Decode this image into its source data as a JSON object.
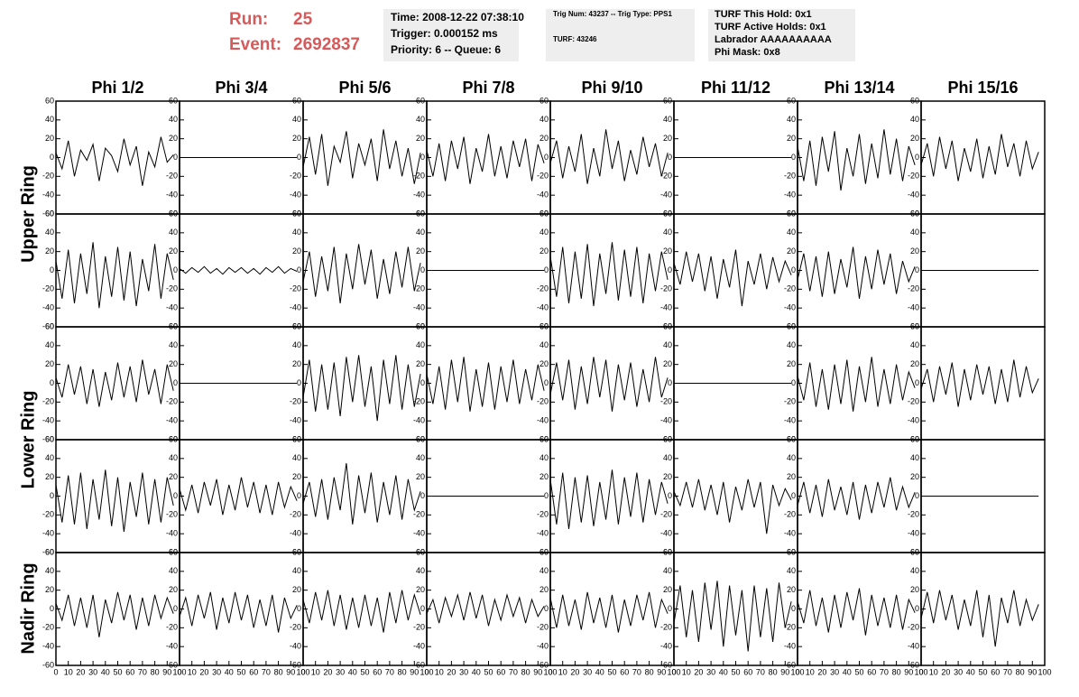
{
  "header": {
    "run_label": "Run:",
    "run": 25,
    "event_label": "Event:",
    "event": 2692837,
    "info1": [
      "Time: 2008-12-22 07:38:10",
      "Trigger: 0.000152 ms",
      "Priority: 6 -- Queue: 6"
    ],
    "info2": [
      "Trig Num: 43237 -- Trig Type: PPS1",
      "TURF: 43246"
    ],
    "info3": [
      "TURF This Hold: 0x1",
      "TURF Active Holds: 0x1",
      "Labrador AAAAAAAAAA",
      "Phi Mask: 0x8"
    ]
  },
  "chart_data": {
    "type": "waveform-grid",
    "columns": [
      "Phi 1/2",
      "Phi 3/4",
      "Phi 5/6",
      "Phi 7/8",
      "Phi 9/10",
      "Phi 11/12",
      "Phi 13/14",
      "Phi 15/16"
    ],
    "ring_labels": [
      "Upper Ring",
      "Lower Ring",
      "Nadir Ring"
    ],
    "xlim": [
      0,
      100
    ],
    "xticks": [
      0,
      10,
      20,
      30,
      40,
      50,
      60,
      70,
      80,
      90,
      100
    ],
    "ylim": [
      -60,
      60
    ],
    "yticks": [
      -60,
      -40,
      -20,
      0,
      20,
      40,
      60
    ],
    "color": "#000000",
    "x": [
      0,
      5,
      10,
      15,
      20,
      25,
      30,
      35,
      40,
      45,
      50,
      55,
      60,
      65,
      70,
      75,
      80,
      85,
      90,
      95
    ],
    "panels": [
      [
        [
          5,
          -12,
          18,
          -20,
          8,
          -3,
          14,
          -25,
          10,
          2,
          -15,
          20,
          -8,
          12,
          -30,
          6,
          -10,
          22,
          -5,
          3
        ],
        [
          0,
          0,
          0,
          0,
          0,
          0,
          0,
          0,
          0,
          0,
          0,
          0,
          0,
          0,
          0,
          0,
          0,
          0,
          0,
          0
        ],
        [
          -10,
          22,
          -18,
          25,
          -30,
          12,
          -5,
          28,
          -22,
          15,
          -8,
          20,
          -25,
          30,
          -12,
          18,
          -20,
          10,
          -28,
          5
        ],
        [
          8,
          -20,
          15,
          -25,
          18,
          -12,
          22,
          -28,
          10,
          -15,
          25,
          -20,
          12,
          -22,
          18,
          -10,
          20,
          -25,
          14,
          -6
        ],
        [
          -6,
          18,
          -22,
          12,
          -15,
          25,
          -28,
          10,
          -20,
          30,
          -12,
          18,
          -25,
          8,
          -18,
          22,
          -10,
          15,
          -20,
          5
        ],
        [
          0,
          0,
          0,
          0,
          0,
          0,
          0,
          0,
          0,
          0,
          0,
          0,
          0,
          0,
          0,
          0,
          0,
          0,
          0,
          0
        ],
        [
          12,
          -25,
          18,
          -30,
          22,
          -15,
          28,
          -35,
          10,
          -20,
          25,
          -28,
          15,
          -22,
          30,
          -18,
          20,
          -25,
          12,
          -8
        ],
        [
          -8,
          15,
          -20,
          22,
          -12,
          18,
          -25,
          10,
          -15,
          20,
          -22,
          12,
          -18,
          25,
          -10,
          15,
          -20,
          18,
          -12,
          6
        ]
      ],
      [
        [
          10,
          -30,
          22,
          -35,
          18,
          -25,
          30,
          -40,
          15,
          -28,
          25,
          -32,
          20,
          -38,
          12,
          -22,
          28,
          -30,
          18,
          -10
        ],
        [
          2,
          -3,
          3,
          -2,
          4,
          -3,
          2,
          -4,
          3,
          -2,
          3,
          -3,
          2,
          -4,
          3,
          -2,
          4,
          -3,
          2,
          -1
        ],
        [
          -12,
          20,
          -28,
          15,
          -22,
          25,
          -35,
          18,
          -20,
          28,
          -15,
          22,
          -30,
          12,
          -25,
          20,
          -18,
          25,
          -22,
          8
        ],
        [
          0,
          0,
          0,
          0,
          0,
          0,
          0,
          0,
          0,
          0,
          0,
          0,
          0,
          0,
          0,
          0,
          0,
          0,
          0,
          0
        ],
        [
          15,
          -28,
          25,
          -35,
          20,
          -30,
          28,
          -38,
          18,
          -25,
          30,
          -32,
          22,
          -28,
          25,
          -35,
          18,
          -22,
          20,
          -10
        ],
        [
          8,
          -15,
          20,
          -12,
          18,
          -22,
          15,
          -30,
          12,
          -18,
          22,
          -38,
          10,
          -15,
          18,
          -20,
          14,
          -12,
          10,
          -5
        ],
        [
          -10,
          18,
          -22,
          15,
          -28,
          20,
          -25,
          12,
          -18,
          25,
          -30,
          15,
          -20,
          22,
          -15,
          18,
          -25,
          10,
          -12,
          4
        ],
        [
          0,
          0,
          0,
          0,
          0,
          0,
          0,
          0,
          0,
          0,
          0,
          0,
          0,
          0,
          0,
          0,
          0,
          0,
          0,
          0
        ]
      ],
      [
        [
          6,
          -15,
          20,
          -12,
          18,
          -22,
          15,
          -25,
          12,
          -18,
          22,
          -15,
          18,
          -20,
          25,
          -12,
          15,
          -22,
          20,
          -8
        ],
        [
          0,
          0,
          0,
          0,
          0,
          0,
          0,
          0,
          0,
          0,
          0,
          0,
          0,
          0,
          0,
          0,
          0,
          0,
          0,
          0
        ],
        [
          -15,
          25,
          -30,
          20,
          -28,
          22,
          -35,
          28,
          -20,
          30,
          -25,
          18,
          -40,
          25,
          -22,
          30,
          -28,
          20,
          -25,
          10
        ],
        [
          10,
          -22,
          18,
          -28,
          25,
          -20,
          28,
          -30,
          15,
          -25,
          22,
          -28,
          18,
          -20,
          25,
          -22,
          15,
          -18,
          20,
          -8
        ],
        [
          -12,
          22,
          -18,
          25,
          -28,
          18,
          -22,
          28,
          -15,
          25,
          -30,
          20,
          -18,
          22,
          -25,
          15,
          -20,
          28,
          -15,
          6
        ],
        [
          0,
          0,
          0,
          0,
          0,
          0,
          0,
          0,
          0,
          0,
          0,
          0,
          0,
          0,
          0,
          0,
          0,
          0,
          0,
          0
        ],
        [
          8,
          -18,
          22,
          -25,
          15,
          -28,
          20,
          -22,
          25,
          -30,
          18,
          -20,
          28,
          -25,
          15,
          -22,
          20,
          -18,
          12,
          -5
        ],
        [
          -6,
          15,
          -20,
          18,
          -12,
          22,
          -25,
          15,
          -18,
          20,
          -12,
          18,
          -22,
          15,
          -20,
          25,
          -15,
          18,
          -10,
          5
        ]
      ],
      [
        [
          12,
          -28,
          22,
          -30,
          25,
          -35,
          18,
          -25,
          28,
          -32,
          20,
          -38,
          15,
          -22,
          25,
          -30,
          18,
          -28,
          20,
          -10
        ],
        [
          8,
          -15,
          12,
          -18,
          15,
          -10,
          18,
          -20,
          12,
          -15,
          20,
          -12,
          15,
          -18,
          12,
          -20,
          15,
          -12,
          10,
          -5
        ],
        [
          -8,
          15,
          -22,
          18,
          -25,
          20,
          -15,
          35,
          -30,
          22,
          -18,
          25,
          -28,
          15,
          -20,
          22,
          -25,
          18,
          -15,
          5
        ],
        [
          0,
          0,
          0,
          0,
          0,
          0,
          0,
          0,
          0,
          0,
          0,
          0,
          0,
          0,
          0,
          0,
          0,
          0,
          0,
          0
        ],
        [
          18,
          -30,
          25,
          -35,
          20,
          -28,
          22,
          -32,
          15,
          -25,
          28,
          -30,
          20,
          -22,
          25,
          -28,
          18,
          -20,
          15,
          -8
        ],
        [
          5,
          -10,
          15,
          -12,
          18,
          -15,
          12,
          -20,
          15,
          -28,
          10,
          -15,
          18,
          -12,
          15,
          -40,
          12,
          -10,
          8,
          -4
        ],
        [
          -10,
          15,
          -18,
          12,
          -22,
          18,
          -15,
          10,
          -20,
          15,
          -25,
          12,
          -18,
          15,
          -12,
          20,
          -15,
          10,
          -12,
          4
        ],
        [
          0,
          0,
          0,
          0,
          0,
          0,
          0,
          0,
          0,
          0,
          0,
          0,
          0,
          0,
          0,
          0,
          0,
          0,
          0,
          0
        ]
      ],
      [
        [
          6,
          -12,
          15,
          -18,
          12,
          -20,
          15,
          -30,
          10,
          -15,
          18,
          -12,
          15,
          -22,
          12,
          -18,
          15,
          -10,
          12,
          -5
        ],
        [
          -8,
          12,
          -18,
          15,
          -10,
          18,
          -22,
          12,
          -15,
          18,
          -12,
          15,
          -20,
          10,
          -18,
          15,
          -25,
          12,
          -10,
          4
        ],
        [
          10,
          -15,
          18,
          -12,
          20,
          -18,
          15,
          -22,
          12,
          -20,
          15,
          -18,
          12,
          -25,
          18,
          -15,
          20,
          -12,
          15,
          -6
        ],
        [
          -5,
          10,
          -15,
          12,
          -8,
          15,
          -12,
          18,
          -10,
          15,
          -18,
          10,
          -12,
          15,
          -8,
          12,
          -15,
          10,
          -8,
          3
        ],
        [
          12,
          -20,
          15,
          -18,
          10,
          -22,
          18,
          -15,
          12,
          -20,
          15,
          -25,
          10,
          -18,
          15,
          -12,
          18,
          -20,
          10,
          -5
        ],
        [
          -15,
          25,
          -30,
          20,
          -35,
          28,
          -22,
          30,
          -40,
          25,
          -28,
          20,
          -45,
          25,
          -30,
          22,
          -35,
          28,
          -20,
          8
        ],
        [
          8,
          -15,
          20,
          -18,
          12,
          -25,
          15,
          -20,
          18,
          -12,
          22,
          -28,
          15,
          -18,
          12,
          -20,
          15,
          -22,
          10,
          -4
        ],
        [
          -10,
          18,
          -15,
          20,
          -12,
          15,
          -22,
          10,
          -18,
          20,
          -30,
          15,
          -40,
          12,
          -15,
          20,
          -18,
          10,
          -12,
          5
        ]
      ]
    ]
  }
}
